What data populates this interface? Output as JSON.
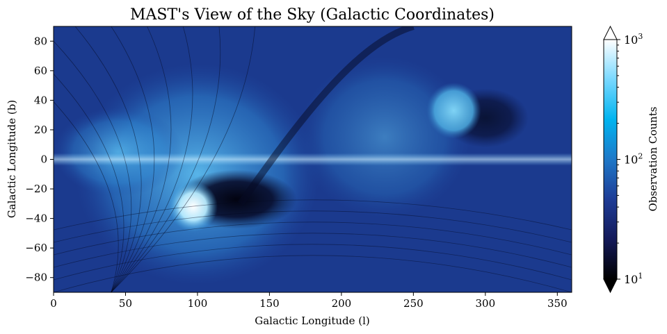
{
  "chart_data": {
    "type": "heatmap",
    "title": "MAST's View of the Sky (Galactic Coordinates)",
    "xlabel": "Galactic Longitude (l)",
    "ylabel": "Galactic Longitude (b)",
    "xlim": [
      0,
      360
    ],
    "ylim": [
      -90,
      90
    ],
    "x_ticks": [
      0,
      50,
      100,
      150,
      200,
      250,
      300,
      350
    ],
    "y_ticks": [
      -80,
      -60,
      -40,
      -20,
      0,
      20,
      40,
      60,
      80
    ],
    "grid": false,
    "colorbar": {
      "label": "Observation Counts",
      "scale": "log",
      "range": [
        10,
        1000
      ],
      "extend": "both",
      "tick_values": [
        10,
        100,
        1000
      ],
      "tick_labels": [
        {
          "base": "10",
          "exp": "1"
        },
        {
          "base": "10",
          "exp": "2"
        },
        {
          "base": "10",
          "exp": "3"
        }
      ],
      "colormap_stops": [
        "#000000",
        "#141a5a",
        "#1e3c96",
        "#1e78c8",
        "#00b4f0",
        "#78d8ff",
        "#ffffff"
      ]
    },
    "features": {
      "galactic_plane_b": 0,
      "bright_regions": [
        {
          "l": 97,
          "b": -32
        },
        {
          "l": 278,
          "b": 33
        }
      ],
      "dark_region": {
        "l": 127,
        "b": -27
      }
    }
  }
}
